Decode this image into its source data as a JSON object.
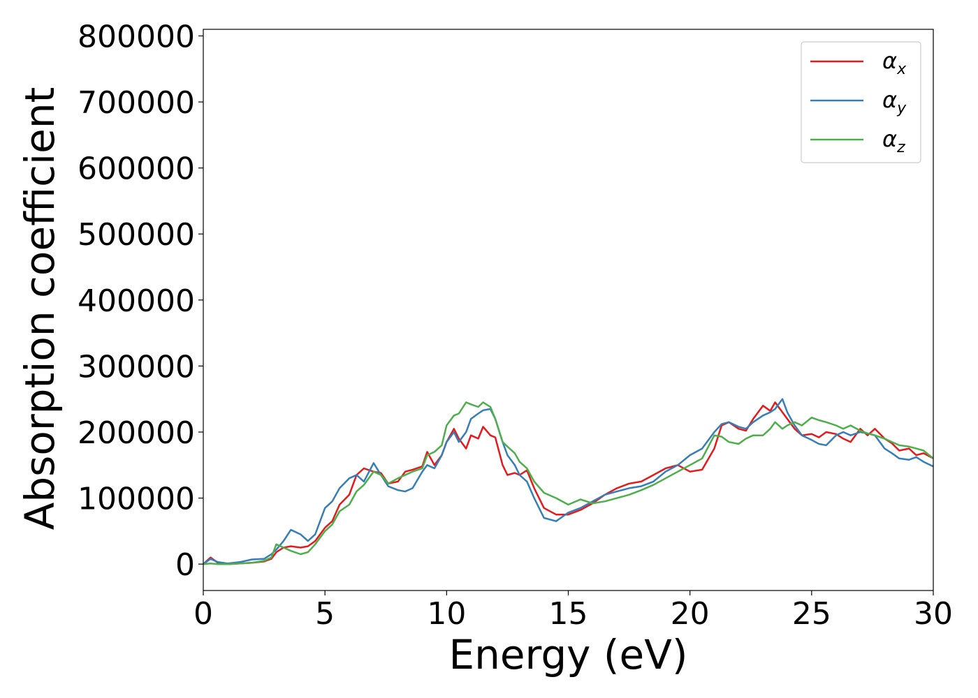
{
  "chart_data": {
    "type": "line",
    "title": "",
    "xlabel": "Energy (eV)",
    "ylabel": "Absorption coefficient",
    "xlim": [
      0,
      30
    ],
    "ylim": [
      -40000,
      810000
    ],
    "xticks": [
      0,
      5,
      10,
      15,
      20,
      25,
      30
    ],
    "xtick_labels": [
      "0",
      "5",
      "10",
      "15",
      "20",
      "25",
      "30"
    ],
    "yticks": [
      0,
      100000,
      200000,
      300000,
      400000,
      500000,
      600000,
      700000,
      800000
    ],
    "ytick_labels": [
      "0",
      "100000",
      "200000",
      "300000",
      "400000",
      "500000",
      "600000",
      "700000",
      "800000"
    ],
    "grid": false,
    "legend_position": "top-right",
    "series": [
      {
        "name": "αx",
        "symbol": "α",
        "subscript": "x",
        "color": "#e41a1c",
        "x": [
          0,
          0.3,
          0.6,
          1,
          1.5,
          2,
          2.5,
          2.8,
          3,
          3.3,
          3.6,
          4,
          4.3,
          4.6,
          5,
          5.3,
          5.6,
          6,
          6.3,
          6.6,
          7,
          7.3,
          7.6,
          8,
          8.3,
          8.6,
          9,
          9.2,
          9.5,
          9.8,
          10,
          10.3,
          10.5,
          10.8,
          11,
          11.3,
          11.5,
          11.8,
          12,
          12.3,
          12.5,
          12.8,
          13,
          13.3,
          13.6,
          14,
          14.5,
          15,
          15.5,
          16,
          16.5,
          17,
          17.5,
          18,
          18.5,
          19,
          19.5,
          20,
          20.5,
          21,
          21.3,
          21.6,
          22,
          22.3,
          22.6,
          23,
          23.3,
          23.5,
          23.8,
          24,
          24.3,
          24.6,
          25,
          25.3,
          25.6,
          26,
          26.3,
          26.6,
          27,
          27.3,
          27.6,
          28,
          28.3,
          28.6,
          29,
          29.3,
          29.6,
          30
        ],
        "y": [
          0,
          10000,
          2000,
          0,
          1000,
          2000,
          4000,
          8000,
          18000,
          25000,
          27000,
          25000,
          27000,
          35000,
          55000,
          65000,
          90000,
          105000,
          135000,
          145000,
          140000,
          138000,
          122000,
          125000,
          140000,
          143000,
          148000,
          170000,
          150000,
          165000,
          185000,
          205000,
          190000,
          175000,
          195000,
          190000,
          208000,
          195000,
          192000,
          150000,
          135000,
          138000,
          135000,
          142000,
          115000,
          85000,
          75000,
          75000,
          82000,
          92000,
          105000,
          115000,
          122000,
          125000,
          135000,
          145000,
          150000,
          140000,
          143000,
          175000,
          210000,
          215000,
          205000,
          202000,
          220000,
          240000,
          232000,
          245000,
          230000,
          220000,
          205000,
          195000,
          197000,
          192000,
          200000,
          197000,
          190000,
          185000,
          205000,
          195000,
          205000,
          190000,
          183000,
          172000,
          175000,
          165000,
          168000,
          160000
        ]
      },
      {
        "name": "αy",
        "symbol": "α",
        "subscript": "y",
        "color": "#377eb8",
        "x": [
          0,
          0.3,
          0.6,
          1,
          1.5,
          2,
          2.5,
          2.8,
          3,
          3.3,
          3.6,
          4,
          4.3,
          4.6,
          5,
          5.3,
          5.6,
          6,
          6.3,
          6.6,
          7,
          7.3,
          7.6,
          8,
          8.3,
          8.6,
          9,
          9.2,
          9.5,
          9.8,
          10,
          10.3,
          10.5,
          10.8,
          11,
          11.3,
          11.5,
          11.8,
          12,
          12.3,
          12.5,
          12.8,
          13,
          13.3,
          13.6,
          14,
          14.5,
          15,
          15.5,
          16,
          16.5,
          17,
          17.5,
          18,
          18.5,
          19,
          19.5,
          20,
          20.5,
          21,
          21.3,
          21.6,
          22,
          22.3,
          22.6,
          23,
          23.3,
          23.5,
          23.8,
          24,
          24.3,
          24.6,
          25,
          25.3,
          25.6,
          26,
          26.3,
          26.6,
          27,
          27.3,
          27.6,
          28,
          28.3,
          28.6,
          29,
          29.3,
          29.6,
          30
        ],
        "y": [
          0,
          8000,
          3000,
          1000,
          3000,
          7000,
          8000,
          15000,
          22000,
          35000,
          52000,
          45000,
          35000,
          45000,
          85000,
          95000,
          115000,
          130000,
          135000,
          125000,
          153000,
          135000,
          118000,
          112000,
          110000,
          115000,
          140000,
          150000,
          145000,
          165000,
          185000,
          200000,
          185000,
          200000,
          220000,
          228000,
          233000,
          235000,
          220000,
          185000,
          165000,
          150000,
          135000,
          125000,
          100000,
          70000,
          65000,
          78000,
          85000,
          95000,
          105000,
          110000,
          115000,
          118000,
          125000,
          140000,
          150000,
          165000,
          175000,
          200000,
          212000,
          215000,
          208000,
          205000,
          215000,
          225000,
          230000,
          235000,
          250000,
          230000,
          210000,
          195000,
          188000,
          182000,
          180000,
          195000,
          200000,
          195000,
          200000,
          198000,
          195000,
          175000,
          168000,
          160000,
          158000,
          162000,
          155000,
          148000
        ]
      },
      {
        "name": "αz",
        "symbol": "α",
        "subscript": "z",
        "color": "#4daf4a",
        "x": [
          0,
          0.3,
          0.6,
          1,
          1.5,
          2,
          2.5,
          2.8,
          3,
          3.3,
          3.6,
          4,
          4.3,
          4.6,
          5,
          5.3,
          5.6,
          6,
          6.3,
          6.6,
          7,
          7.3,
          7.6,
          8,
          8.3,
          8.6,
          9,
          9.2,
          9.5,
          9.8,
          10,
          10.3,
          10.5,
          10.8,
          11,
          11.3,
          11.5,
          11.8,
          12,
          12.3,
          12.5,
          12.8,
          13,
          13.3,
          13.6,
          14,
          14.5,
          15,
          15.5,
          16,
          16.5,
          17,
          17.5,
          18,
          18.5,
          19,
          19.5,
          20,
          20.5,
          21,
          21.3,
          21.6,
          22,
          22.3,
          22.6,
          23,
          23.3,
          23.5,
          23.8,
          24,
          24.3,
          24.6,
          25,
          25.3,
          25.6,
          26,
          26.3,
          26.6,
          27,
          27.3,
          27.6,
          28,
          28.3,
          28.6,
          29,
          29.3,
          29.6,
          30
        ],
        "y": [
          0,
          1000,
          0,
          0,
          1000,
          2000,
          5000,
          10000,
          30000,
          25000,
          20000,
          15000,
          18000,
          30000,
          50000,
          60000,
          80000,
          90000,
          110000,
          120000,
          140000,
          135000,
          122000,
          130000,
          135000,
          140000,
          145000,
          165000,
          170000,
          180000,
          210000,
          225000,
          228000,
          245000,
          242000,
          238000,
          245000,
          238000,
          220000,
          185000,
          178000,
          168000,
          155000,
          145000,
          125000,
          108000,
          100000,
          90000,
          98000,
          92000,
          95000,
          100000,
          105000,
          112000,
          120000,
          130000,
          140000,
          150000,
          160000,
          195000,
          193000,
          185000,
          182000,
          190000,
          195000,
          195000,
          205000,
          215000,
          205000,
          210000,
          215000,
          210000,
          222000,
          218000,
          215000,
          210000,
          205000,
          210000,
          202000,
          198000,
          195000,
          190000,
          185000,
          180000,
          178000,
          175000,
          172000,
          160000
        ]
      }
    ]
  }
}
